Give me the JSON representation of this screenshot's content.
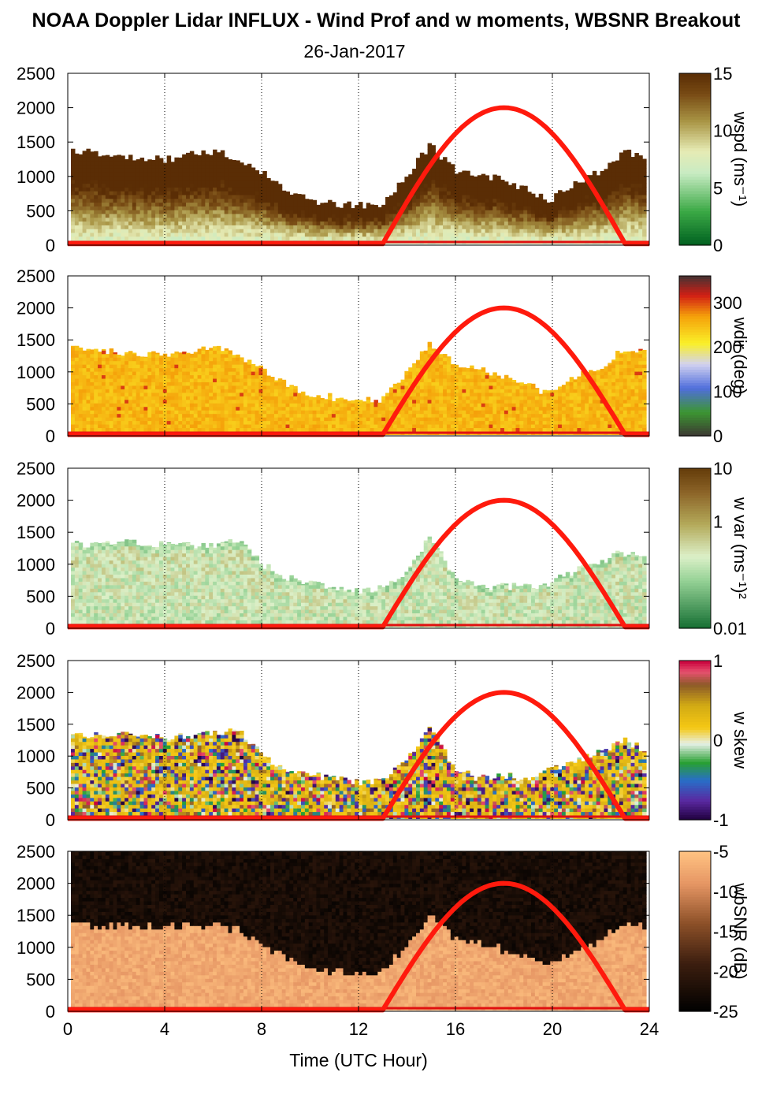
{
  "title": "NOAA Doppler Lidar INFLUX - Wind Prof and w moments, WBSNR Breakout",
  "subtitle": "26-Jan-2017",
  "xlabel": "Time (UTC Hour)",
  "x_ticks": [
    "0",
    "4",
    "8",
    "12",
    "16",
    "20",
    "24"
  ],
  "y_ticks": [
    "0",
    "500",
    "1000",
    "1500",
    "2000",
    "2500"
  ],
  "colors": {
    "sun_curve": "#ff1a0d",
    "ground_line": "#e01010"
  },
  "chart_data": [
    {
      "type": "heatmap",
      "panel": "wspd",
      "colorbar_label": "wspd (ms⁻¹)",
      "colorbar_ticks": [
        "15",
        "10",
        "5",
        "0"
      ],
      "colorbar_range": [
        0,
        15
      ],
      "xlim": [
        0,
        24
      ],
      "ylim": [
        0,
        2500
      ],
      "grid_x": true,
      "top_height_by_hour": [
        [
          0,
          1380
        ],
        [
          2,
          1300
        ],
        [
          4,
          1250
        ],
        [
          6,
          1380
        ],
        [
          7,
          1250
        ],
        [
          8,
          1050
        ],
        [
          9,
          800
        ],
        [
          10,
          650
        ],
        [
          11,
          600
        ],
        [
          12,
          580
        ],
        [
          13,
          560
        ],
        [
          14,
          1000
        ],
        [
          15,
          1450
        ],
        [
          16,
          1100
        ],
        [
          17,
          1050
        ],
        [
          18,
          950
        ],
        [
          19,
          800
        ],
        [
          20,
          650
        ],
        [
          21,
          900
        ],
        [
          22,
          1050
        ],
        [
          23,
          1350
        ],
        [
          24,
          1300
        ]
      ]
    },
    {
      "type": "heatmap",
      "panel": "wdir",
      "colorbar_label": "wdir (deg)",
      "colorbar_ticks": [
        "300",
        "200",
        "100",
        "0"
      ],
      "colorbar_range": [
        0,
        360
      ],
      "xlim": [
        0,
        24
      ],
      "ylim": [
        0,
        2500
      ],
      "grid_x": true,
      "top_height_by_hour": [
        [
          0,
          1380
        ],
        [
          2,
          1300
        ],
        [
          4,
          1250
        ],
        [
          6,
          1380
        ],
        [
          7,
          1250
        ],
        [
          8,
          1050
        ],
        [
          9,
          800
        ],
        [
          10,
          650
        ],
        [
          11,
          600
        ],
        [
          12,
          580
        ],
        [
          13,
          560
        ],
        [
          14,
          1000
        ],
        [
          15,
          1450
        ],
        [
          16,
          1100
        ],
        [
          17,
          1050
        ],
        [
          18,
          950
        ],
        [
          19,
          800
        ],
        [
          20,
          650
        ],
        [
          21,
          900
        ],
        [
          22,
          1050
        ],
        [
          23,
          1350
        ],
        [
          24,
          1300
        ]
      ]
    },
    {
      "type": "heatmap",
      "panel": "w var",
      "colorbar_label": "w var (ms⁻¹)²",
      "colorbar_ticks": [
        "10",
        "1",
        "0.01"
      ],
      "colorbar_scale": "log",
      "colorbar_range": [
        0.01,
        10
      ],
      "xlim": [
        0,
        24
      ],
      "ylim": [
        0,
        2500
      ],
      "grid_x": true,
      "top_height_by_hour": [
        [
          0,
          1300
        ],
        [
          2,
          1350
        ],
        [
          4,
          1300
        ],
        [
          6,
          1300
        ],
        [
          7,
          1350
        ],
        [
          8,
          1000
        ],
        [
          9,
          800
        ],
        [
          10,
          700
        ],
        [
          11,
          650
        ],
        [
          12,
          600
        ],
        [
          13,
          620
        ],
        [
          14,
          900
        ],
        [
          15,
          1450
        ],
        [
          16,
          800
        ],
        [
          17,
          650
        ],
        [
          18,
          650
        ],
        [
          19,
          650
        ],
        [
          20,
          700
        ],
        [
          21,
          900
        ],
        [
          22,
          1000
        ],
        [
          23,
          1200
        ],
        [
          24,
          1100
        ]
      ]
    },
    {
      "type": "heatmap",
      "panel": "w skew",
      "colorbar_label": "w skew",
      "colorbar_ticks": [
        "1",
        "0",
        "-1"
      ],
      "colorbar_range": [
        -1,
        1
      ],
      "xlim": [
        0,
        24
      ],
      "ylim": [
        0,
        2500
      ],
      "grid_x": true,
      "top_height_by_hour": [
        [
          0,
          1300
        ],
        [
          2,
          1350
        ],
        [
          4,
          1300
        ],
        [
          6,
          1350
        ],
        [
          7,
          1400
        ],
        [
          8,
          1000
        ],
        [
          9,
          800
        ],
        [
          10,
          700
        ],
        [
          11,
          650
        ],
        [
          12,
          600
        ],
        [
          13,
          620
        ],
        [
          14,
          900
        ],
        [
          15,
          1500
        ],
        [
          16,
          800
        ],
        [
          17,
          650
        ],
        [
          18,
          700
        ],
        [
          19,
          650
        ],
        [
          20,
          800
        ],
        [
          21,
          900
        ],
        [
          22,
          1050
        ],
        [
          23,
          1250
        ],
        [
          24,
          1100
        ]
      ]
    },
    {
      "type": "heatmap",
      "panel": "wbSNR",
      "colorbar_label": "wbSNR (dB)",
      "colorbar_ticks": [
        "-5",
        "-10",
        "-15",
        "-20",
        "-25"
      ],
      "colorbar_range": [
        -25,
        -5
      ],
      "xlim": [
        0,
        24
      ],
      "ylim": [
        0,
        2500
      ],
      "grid_x": true,
      "top_height_by_hour": [
        [
          0,
          1350
        ],
        [
          2,
          1300
        ],
        [
          4,
          1300
        ],
        [
          6,
          1350
        ],
        [
          7,
          1250
        ],
        [
          8,
          1000
        ],
        [
          9,
          800
        ],
        [
          10,
          650
        ],
        [
          11,
          600
        ],
        [
          12,
          580
        ],
        [
          13,
          560
        ],
        [
          14,
          1000
        ],
        [
          15,
          1500
        ],
        [
          16,
          1100
        ],
        [
          17,
          1050
        ],
        [
          18,
          950
        ],
        [
          19,
          800
        ],
        [
          20,
          700
        ],
        [
          21,
          900
        ],
        [
          22,
          1050
        ],
        [
          23,
          1350
        ],
        [
          24,
          1300
        ]
      ]
    }
  ],
  "sun_curve": {
    "start_hour": 13.0,
    "peak_hour": 18.0,
    "end_hour": 23.0,
    "peak_height": 2000,
    "night_height": 20
  }
}
